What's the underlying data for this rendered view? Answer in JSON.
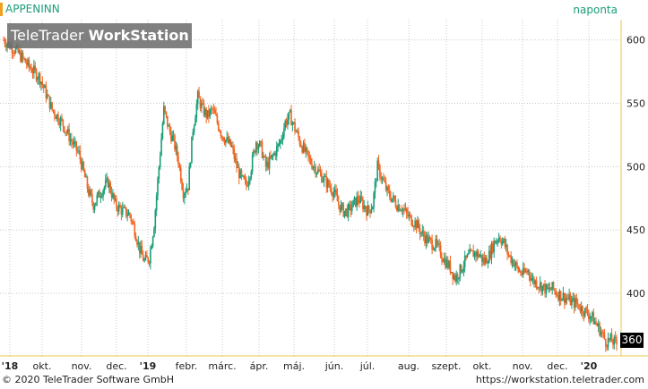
{
  "header": {
    "ticker": "APPENINN",
    "period": "naponta",
    "watermark_plain": "TeleTrader ",
    "watermark_bold": "WorkStation"
  },
  "footer": {
    "copyright": "© 2020 TeleTrader Software GmbH",
    "site": "https://workstation.teletrader.com"
  },
  "colors": {
    "up": "#1a9d78",
    "down": "#f26522",
    "grid": "#c8c8c8",
    "axis_frame": "#e8c84a"
  },
  "chart_data": {
    "type": "candlestick",
    "x_tick_labels": [
      "'18",
      "okt.",
      "nov.",
      "dec.",
      "'19",
      "febr.",
      "márc.",
      "ápr.",
      "máj.",
      "jún.",
      "júl.",
      "aug.",
      "szept.",
      "okt.",
      "nov.",
      "dec.",
      "'20"
    ],
    "y_ticks": [
      400,
      450,
      500,
      550,
      600
    ],
    "ylim": [
      352,
      616
    ],
    "last_price": "360",
    "grid": true,
    "price_path": [
      [
        0,
        600
      ],
      [
        10,
        592
      ],
      [
        20,
        580
      ],
      [
        30,
        570
      ],
      [
        40,
        545
      ],
      [
        48,
        535
      ],
      [
        56,
        520
      ],
      [
        62,
        510
      ],
      [
        66,
        495
      ],
      [
        70,
        480
      ],
      [
        74,
        470
      ],
      [
        80,
        480
      ],
      [
        86,
        488
      ],
      [
        92,
        470
      ],
      [
        98,
        465
      ],
      [
        104,
        462
      ],
      [
        108,
        450
      ],
      [
        112,
        435
      ],
      [
        116,
        425
      ],
      [
        120,
        428
      ],
      [
        124,
        455
      ],
      [
        128,
        500
      ],
      [
        132,
        545
      ],
      [
        136,
        530
      ],
      [
        140,
        520
      ],
      [
        144,
        505
      ],
      [
        148,
        480
      ],
      [
        152,
        485
      ],
      [
        156,
        530
      ],
      [
        160,
        555
      ],
      [
        164,
        545
      ],
      [
        168,
        540
      ],
      [
        172,
        545
      ],
      [
        176,
        535
      ],
      [
        180,
        525
      ],
      [
        184,
        520
      ],
      [
        188,
        515
      ],
      [
        192,
        500
      ],
      [
        196,
        490
      ],
      [
        200,
        485
      ],
      [
        204,
        500
      ],
      [
        208,
        520
      ],
      [
        212,
        515
      ],
      [
        216,
        500
      ],
      [
        220,
        505
      ],
      [
        224,
        512
      ],
      [
        228,
        520
      ],
      [
        232,
        535
      ],
      [
        236,
        540
      ],
      [
        240,
        530
      ],
      [
        244,
        520
      ],
      [
        248,
        512
      ],
      [
        252,
        505
      ],
      [
        256,
        500
      ],
      [
        260,
        495
      ],
      [
        264,
        490
      ],
      [
        268,
        485
      ],
      [
        272,
        480
      ],
      [
        276,
        470
      ],
      [
        280,
        465
      ],
      [
        284,
        465
      ],
      [
        288,
        470
      ],
      [
        292,
        475
      ],
      [
        296,
        470
      ],
      [
        300,
        465
      ],
      [
        304,
        470
      ],
      [
        308,
        500
      ],
      [
        312,
        490
      ],
      [
        316,
        480
      ],
      [
        320,
        475
      ],
      [
        324,
        470
      ],
      [
        328,
        468
      ],
      [
        332,
        462
      ],
      [
        336,
        458
      ],
      [
        340,
        455
      ],
      [
        344,
        448
      ],
      [
        348,
        443
      ],
      [
        352,
        440
      ],
      [
        356,
        438
      ],
      [
        360,
        432
      ],
      [
        364,
        425
      ],
      [
        368,
        420
      ],
      [
        372,
        412
      ],
      [
        376,
        418
      ],
      [
        380,
        425
      ],
      [
        384,
        430
      ],
      [
        388,
        432
      ],
      [
        392,
        430
      ],
      [
        396,
        425
      ],
      [
        400,
        430
      ],
      [
        404,
        440
      ],
      [
        408,
        445
      ],
      [
        412,
        440
      ],
      [
        416,
        430
      ],
      [
        420,
        425
      ],
      [
        424,
        418
      ],
      [
        428,
        415
      ],
      [
        432,
        418
      ],
      [
        436,
        410
      ],
      [
        440,
        408
      ],
      [
        444,
        405
      ],
      [
        448,
        402
      ],
      [
        452,
        404
      ],
      [
        456,
        400
      ],
      [
        460,
        398
      ],
      [
        464,
        396
      ],
      [
        468,
        393
      ],
      [
        472,
        392
      ],
      [
        476,
        388
      ],
      [
        480,
        385
      ],
      [
        484,
        382
      ],
      [
        488,
        376
      ],
      [
        492,
        370
      ],
      [
        496,
        362
      ],
      [
        500,
        363
      ],
      [
        505,
        360
      ]
    ],
    "x_total": 505
  }
}
